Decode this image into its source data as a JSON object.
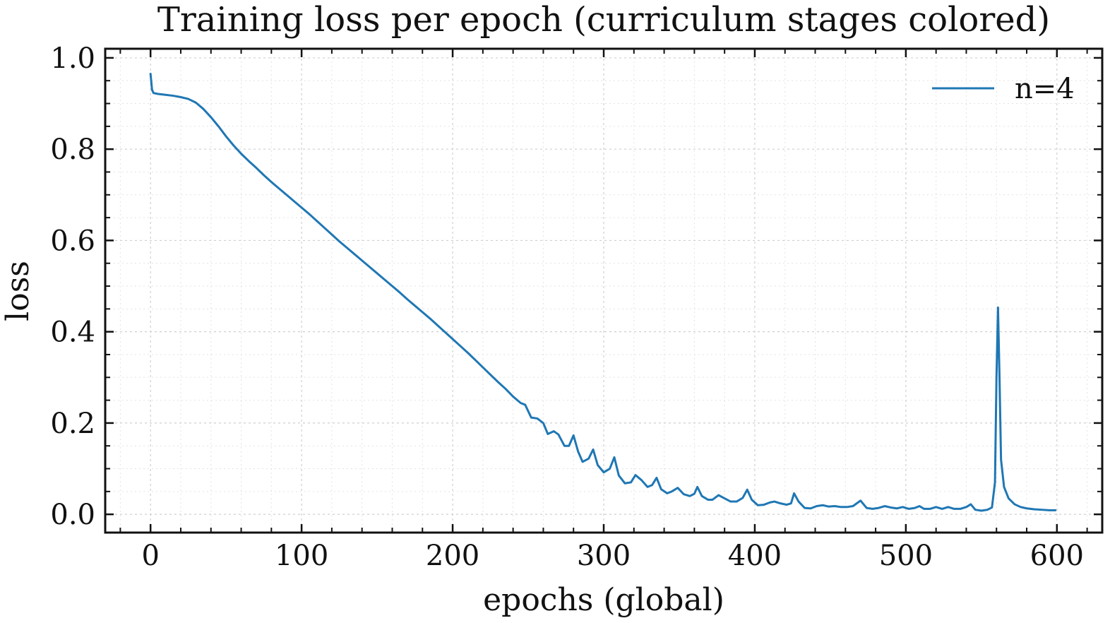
{
  "chart_data": {
    "type": "line",
    "title": "Training loss per epoch (curriculum stages colored)",
    "xlabel": "epochs (global)",
    "ylabel": "loss",
    "xlim": [
      -30,
      630
    ],
    "ylim": [
      -0.04,
      1.02
    ],
    "x_ticks": [
      0,
      100,
      200,
      300,
      400,
      500,
      600
    ],
    "x_tick_labels": [
      "0",
      "100",
      "200",
      "300",
      "400",
      "500",
      "600"
    ],
    "y_ticks": [
      0.0,
      0.2,
      0.4,
      0.6,
      0.8,
      1.0
    ],
    "y_tick_labels": [
      "0.0",
      "0.2",
      "0.4",
      "0.6",
      "0.8",
      "1.0"
    ],
    "grid": true,
    "legend": {
      "position": "top-right",
      "entries": [
        "n=4"
      ]
    },
    "series": [
      {
        "name": "n=4",
        "color": "#1f77b4",
        "points": [
          [
            0,
            0.965
          ],
          [
            1,
            0.93
          ],
          [
            2,
            0.923
          ],
          [
            5,
            0.921
          ],
          [
            10,
            0.919
          ],
          [
            15,
            0.917
          ],
          [
            20,
            0.914
          ],
          [
            25,
            0.91
          ],
          [
            30,
            0.902
          ],
          [
            35,
            0.888
          ],
          [
            40,
            0.87
          ],
          [
            45,
            0.85
          ],
          [
            50,
            0.828
          ],
          [
            55,
            0.808
          ],
          [
            60,
            0.79
          ],
          [
            65,
            0.774
          ],
          [
            70,
            0.759
          ],
          [
            75,
            0.743
          ],
          [
            80,
            0.728
          ],
          [
            85,
            0.714
          ],
          [
            90,
            0.7
          ],
          [
            95,
            0.686
          ],
          [
            100,
            0.672
          ],
          [
            105,
            0.658
          ],
          [
            110,
            0.643
          ],
          [
            115,
            0.628
          ],
          [
            120,
            0.613
          ],
          [
            125,
            0.598
          ],
          [
            130,
            0.584
          ],
          [
            135,
            0.57
          ],
          [
            140,
            0.556
          ],
          [
            145,
            0.542
          ],
          [
            150,
            0.528
          ],
          [
            155,
            0.514
          ],
          [
            160,
            0.5
          ],
          [
            165,
            0.486
          ],
          [
            170,
            0.471
          ],
          [
            175,
            0.457
          ],
          [
            180,
            0.443
          ],
          [
            185,
            0.429
          ],
          [
            190,
            0.414
          ],
          [
            195,
            0.399
          ],
          [
            200,
            0.384
          ],
          [
            205,
            0.369
          ],
          [
            210,
            0.354
          ],
          [
            215,
            0.338
          ],
          [
            220,
            0.322
          ],
          [
            225,
            0.306
          ],
          [
            230,
            0.29
          ],
          [
            235,
            0.275
          ],
          [
            240,
            0.258
          ],
          [
            245,
            0.244
          ],
          [
            248,
            0.24
          ],
          [
            252,
            0.212
          ],
          [
            256,
            0.21
          ],
          [
            260,
            0.2
          ],
          [
            263,
            0.176
          ],
          [
            267,
            0.182
          ],
          [
            270,
            0.175
          ],
          [
            274,
            0.15
          ],
          [
            277,
            0.15
          ],
          [
            280,
            0.173
          ],
          [
            283,
            0.138
          ],
          [
            286,
            0.115
          ],
          [
            290,
            0.122
          ],
          [
            293,
            0.142
          ],
          [
            296,
            0.108
          ],
          [
            300,
            0.092
          ],
          [
            304,
            0.1
          ],
          [
            307,
            0.125
          ],
          [
            310,
            0.085
          ],
          [
            314,
            0.068
          ],
          [
            318,
            0.07
          ],
          [
            321,
            0.086
          ],
          [
            325,
            0.075
          ],
          [
            329,
            0.06
          ],
          [
            332,
            0.064
          ],
          [
            335,
            0.08
          ],
          [
            338,
            0.055
          ],
          [
            342,
            0.046
          ],
          [
            345,
            0.05
          ],
          [
            349,
            0.058
          ],
          [
            353,
            0.044
          ],
          [
            357,
            0.04
          ],
          [
            360,
            0.045
          ],
          [
            362,
            0.06
          ],
          [
            365,
            0.04
          ],
          [
            369,
            0.032
          ],
          [
            372,
            0.032
          ],
          [
            376,
            0.042
          ],
          [
            380,
            0.035
          ],
          [
            384,
            0.028
          ],
          [
            388,
            0.028
          ],
          [
            392,
            0.036
          ],
          [
            395,
            0.054
          ],
          [
            398,
            0.032
          ],
          [
            402,
            0.02
          ],
          [
            406,
            0.021
          ],
          [
            410,
            0.026
          ],
          [
            413,
            0.028
          ],
          [
            417,
            0.024
          ],
          [
            421,
            0.021
          ],
          [
            424,
            0.024
          ],
          [
            426,
            0.046
          ],
          [
            429,
            0.028
          ],
          [
            433,
            0.014
          ],
          [
            437,
            0.013
          ],
          [
            441,
            0.018
          ],
          [
            445,
            0.02
          ],
          [
            449,
            0.017
          ],
          [
            453,
            0.018
          ],
          [
            457,
            0.016
          ],
          [
            461,
            0.016
          ],
          [
            465,
            0.018
          ],
          [
            470,
            0.03
          ],
          [
            474,
            0.014
          ],
          [
            478,
            0.012
          ],
          [
            482,
            0.014
          ],
          [
            486,
            0.018
          ],
          [
            490,
            0.015
          ],
          [
            494,
            0.013
          ],
          [
            498,
            0.016
          ],
          [
            502,
            0.012
          ],
          [
            506,
            0.014
          ],
          [
            509,
            0.018
          ],
          [
            512,
            0.012
          ],
          [
            516,
            0.012
          ],
          [
            520,
            0.016
          ],
          [
            524,
            0.012
          ],
          [
            528,
            0.016
          ],
          [
            532,
            0.012
          ],
          [
            536,
            0.012
          ],
          [
            540,
            0.016
          ],
          [
            543,
            0.022
          ],
          [
            546,
            0.01
          ],
          [
            550,
            0.008
          ],
          [
            554,
            0.01
          ],
          [
            557,
            0.015
          ],
          [
            559,
            0.07
          ],
          [
            560,
            0.3
          ],
          [
            561,
            0.453
          ],
          [
            562,
            0.3
          ],
          [
            563,
            0.12
          ],
          [
            565,
            0.06
          ],
          [
            568,
            0.035
          ],
          [
            572,
            0.022
          ],
          [
            576,
            0.016
          ],
          [
            580,
            0.013
          ],
          [
            585,
            0.011
          ],
          [
            590,
            0.01
          ],
          [
            595,
            0.009
          ],
          [
            599,
            0.009
          ]
        ]
      }
    ]
  }
}
